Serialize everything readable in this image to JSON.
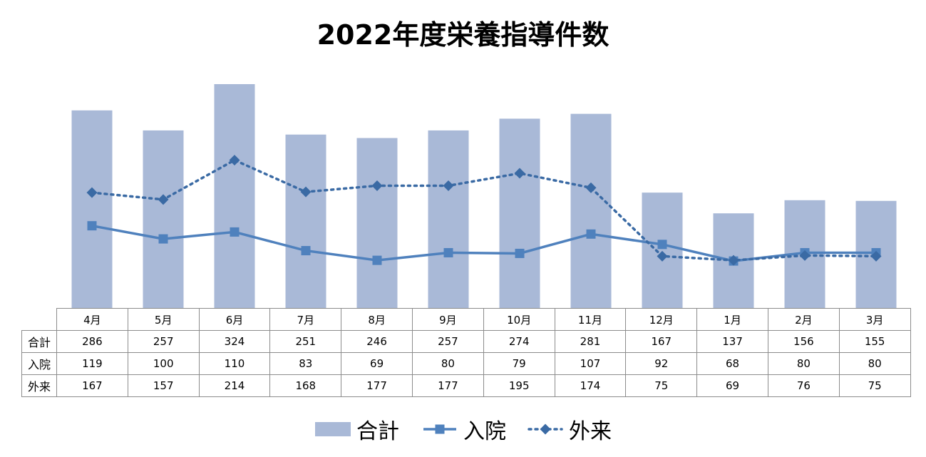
{
  "chart_data": {
    "type": "bar",
    "title": "2022年度栄養指導件数",
    "categories": [
      "4月",
      "5月",
      "6月",
      "7月",
      "8月",
      "9月",
      "10月",
      "11月",
      "12月",
      "1月",
      "2月",
      "3月"
    ],
    "series": [
      {
        "name": "合計",
        "kind": "bar",
        "values": [
          286,
          257,
          324,
          251,
          246,
          257,
          274,
          281,
          167,
          137,
          156,
          155
        ],
        "color": "#a9b9d7"
      },
      {
        "name": "入院",
        "kind": "line",
        "marker": "square",
        "line_style": "solid",
        "values": [
          119,
          100,
          110,
          83,
          69,
          80,
          79,
          107,
          92,
          68,
          80,
          80
        ],
        "color": "#4f81bd"
      },
      {
        "name": "外来",
        "kind": "line",
        "marker": "diamond",
        "line_style": "dotted",
        "values": [
          167,
          157,
          214,
          168,
          177,
          177,
          195,
          174,
          75,
          69,
          76,
          75
        ],
        "color": "#3a6aa4"
      }
    ],
    "ylim": [
      0,
      324
    ],
    "grid": false,
    "legend_position": "bottom",
    "data_table": true
  }
}
